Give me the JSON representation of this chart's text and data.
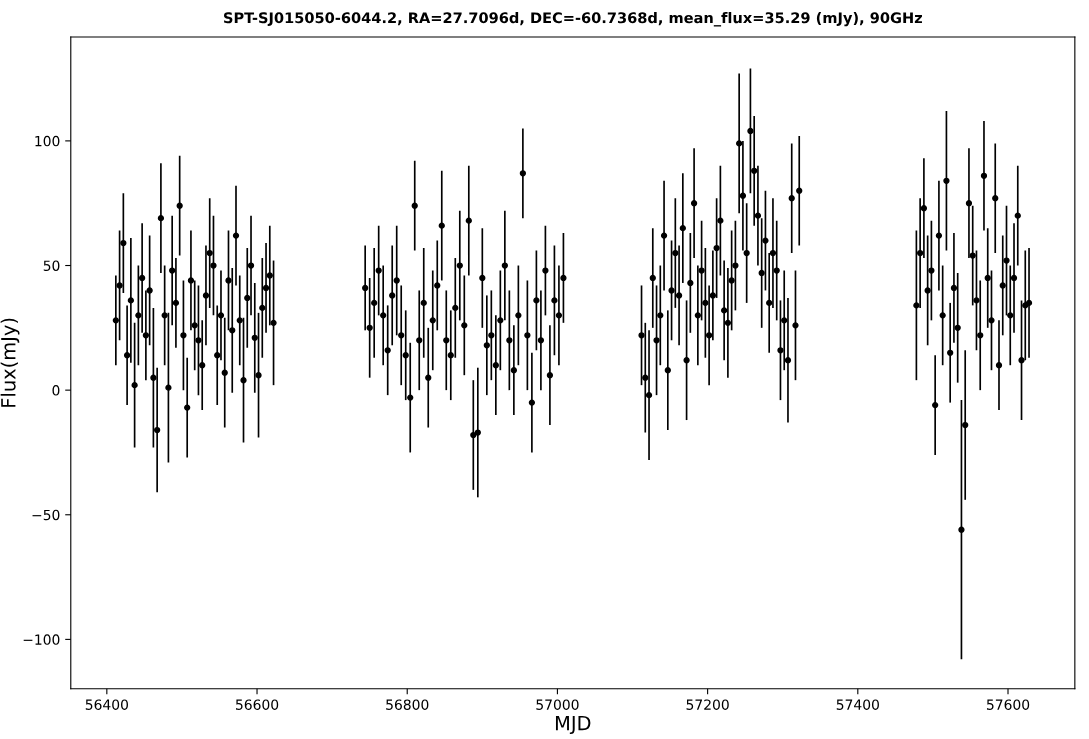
{
  "chart_data": {
    "type": "scatter",
    "title": "SPT-SJ015050-6044.2, RA=27.7096d, DEC=-60.7368d, mean_flux=35.29 (mJy), 90GHz",
    "xlabel": "MJD",
    "ylabel": "Flux(mJy)",
    "xlim": [
      56352,
      57689
    ],
    "ylim": [
      -119.8,
      141.7
    ],
    "xticks": [
      56400,
      56600,
      56800,
      57000,
      57200,
      57400,
      57600
    ],
    "yticks": [
      {
        "value": -100,
        "label": "−100"
      },
      {
        "value": -50,
        "label": "−50"
      },
      0,
      50,
      100
    ],
    "grid": false,
    "legend": false,
    "marker": "circle",
    "series": [
      {
        "color": "#000000",
        "x": [
          56412,
          56417,
          56422,
          56427,
          56432,
          56437,
          56442,
          56447,
          56452,
          56457,
          56462,
          56467,
          56472,
          56477,
          56482,
          56487,
          56492,
          56497,
          56502,
          56507,
          56512,
          56517,
          56522,
          56527,
          56532,
          56537,
          56542,
          56547,
          56552,
          56557,
          56562,
          56567,
          56572,
          56577,
          56582,
          56587,
          56592,
          56597,
          56602,
          56607,
          56612,
          56617,
          56622,
          56744,
          56750,
          56756,
          56762,
          56768,
          56774,
          56780,
          56786,
          56792,
          56798,
          56804,
          56810,
          56816,
          56822,
          56828,
          56834,
          56840,
          56846,
          56852,
          56858,
          56864,
          56870,
          56876,
          56882,
          56888,
          56894,
          56900,
          56906,
          56912,
          56918,
          56924,
          56930,
          56936,
          56942,
          56948,
          56954,
          56960,
          56966,
          56972,
          56978,
          56984,
          56990,
          56996,
          57002,
          57008,
          57112,
          57117,
          57122,
          57127,
          57132,
          57137,
          57142,
          57147,
          57152,
          57157,
          57162,
          57167,
          57172,
          57177,
          57182,
          57187,
          57192,
          57197,
          57202,
          57207,
          57212,
          57217,
          57222,
          57227,
          57232,
          57237,
          57242,
          57247,
          57252,
          57257,
          57262,
          57267,
          57272,
          57277,
          57282,
          57287,
          57292,
          57297,
          57302,
          57307,
          57312,
          57317,
          57322,
          57478,
          57483,
          57488,
          57493,
          57498,
          57503,
          57508,
          57513,
          57518,
          57523,
          57528,
          57533,
          57538,
          57543,
          57548,
          57553,
          57558,
          57563,
          57568,
          57573,
          57578,
          57583,
          57588,
          57593,
          57598,
          57603,
          57608,
          57613,
          57618,
          57623,
          57628
        ],
        "values": [
          28,
          42,
          59,
          14,
          36,
          2,
          30,
          45,
          22,
          40,
          5,
          -16,
          69,
          30,
          1,
          48,
          35,
          74,
          22,
          -7,
          44,
          26,
          20,
          10,
          38,
          55,
          50,
          14,
          30,
          7,
          44,
          24,
          62,
          28,
          4,
          37,
          50,
          21,
          6,
          33,
          41,
          46,
          27,
          41,
          25,
          35,
          48,
          30,
          16,
          38,
          44,
          22,
          14,
          -3,
          74,
          20,
          35,
          5,
          28,
          42,
          66,
          20,
          14,
          33,
          50,
          26,
          68,
          -18,
          -17,
          45,
          18,
          22,
          10,
          28,
          50,
          20,
          8,
          30,
          87,
          22,
          -5,
          36,
          20,
          48,
          6,
          36,
          30,
          45,
          22,
          5,
          -2,
          45,
          20,
          30,
          62,
          8,
          40,
          55,
          38,
          65,
          12,
          43,
          75,
          30,
          48,
          35,
          22,
          38,
          57,
          68,
          32,
          27,
          44,
          50,
          99,
          78,
          55,
          104,
          88,
          70,
          47,
          60,
          35,
          55,
          48,
          16,
          28,
          12,
          77,
          26,
          80,
          34,
          55,
          73,
          40,
          48,
          -6,
          62,
          30,
          84,
          15,
          41,
          25,
          -56,
          -14,
          75,
          54,
          36,
          22,
          86,
          45,
          28,
          77,
          10,
          42,
          52,
          30,
          45,
          70,
          12,
          34,
          35
        ],
        "errors": [
          18,
          22,
          20,
          20,
          25,
          25,
          20,
          22,
          18,
          22,
          28,
          25,
          22,
          20,
          30,
          22,
          18,
          20,
          22,
          20,
          20,
          18,
          22,
          18,
          20,
          22,
          20,
          20,
          18,
          22,
          20,
          25,
          20,
          18,
          25,
          20,
          20,
          22,
          25,
          20,
          18,
          20,
          25,
          17,
          20,
          22,
          18,
          20,
          18,
          20,
          22,
          20,
          18,
          22,
          18,
          20,
          22,
          20,
          20,
          18,
          22,
          20,
          18,
          20,
          22,
          20,
          22,
          22,
          26,
          20,
          20,
          18,
          20,
          20,
          22,
          20,
          18,
          20,
          18,
          22,
          20,
          20,
          20,
          18,
          20,
          22,
          20,
          18,
          20,
          22,
          26,
          20,
          22,
          20,
          22,
          24,
          20,
          22,
          20,
          22,
          24,
          20,
          22,
          20,
          20,
          22,
          20,
          18,
          20,
          22,
          20,
          22,
          20,
          18,
          28,
          22,
          20,
          25,
          22,
          20,
          22,
          20,
          20,
          22,
          20,
          20,
          20,
          25,
          22,
          22,
          22,
          30,
          22,
          20,
          22,
          20,
          20,
          22,
          20,
          28,
          20,
          22,
          22,
          52,
          30,
          22,
          20,
          20,
          22,
          22,
          20,
          20,
          22,
          18,
          20,
          22,
          20,
          22,
          20,
          24,
          22,
          22
        ]
      }
    ]
  }
}
